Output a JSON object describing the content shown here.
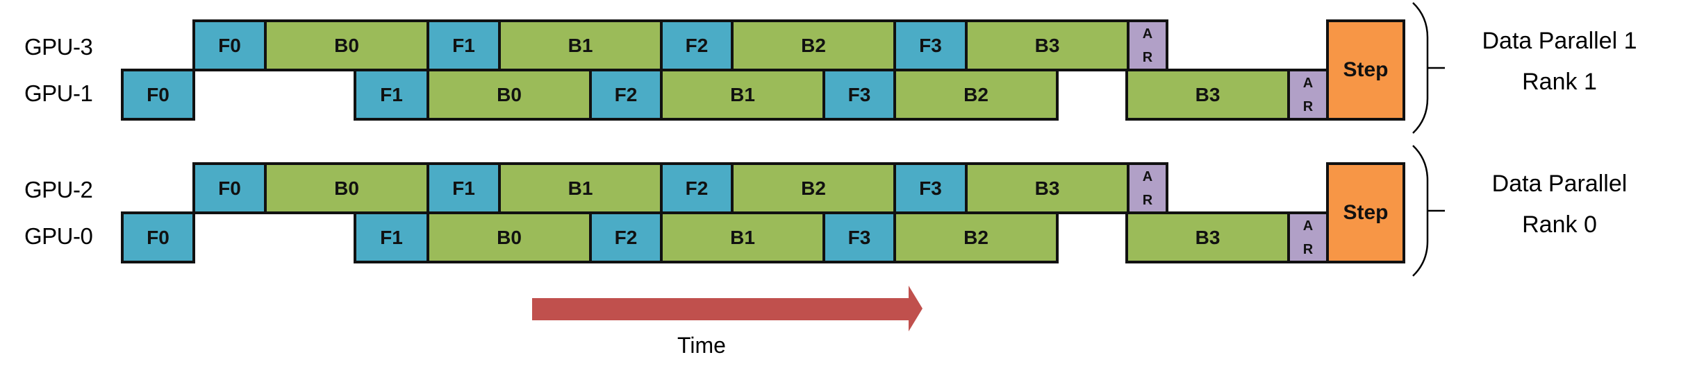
{
  "colors": {
    "forward": "#4BACC6",
    "backward": "#9BBB59",
    "allreduce": "#B1A0C7",
    "step": "#F79646",
    "arrow": "#C0504D"
  },
  "groups": [
    {
      "name": "Data Parallel 1",
      "label_line1": "Data Parallel 1",
      "label_line2": "Rank 1",
      "rows": [
        {
          "gpu": "GPU-3",
          "blocks": [
            {
              "label": "F0",
              "kind": "forward"
            },
            {
              "label": "B0",
              "kind": "backward"
            },
            {
              "label": "F1",
              "kind": "forward"
            },
            {
              "label": "B1",
              "kind": "backward"
            },
            {
              "label": "F2",
              "kind": "forward"
            },
            {
              "label": "B2",
              "kind": "backward"
            },
            {
              "label": "F3",
              "kind": "forward"
            },
            {
              "label": "B3",
              "kind": "backward"
            },
            {
              "label": "A R",
              "kind": "allreduce"
            }
          ]
        },
        {
          "gpu": "GPU-1",
          "blocks": [
            {
              "label": "F0",
              "kind": "forward"
            },
            {
              "label": "F1",
              "kind": "forward"
            },
            {
              "label": "B0",
              "kind": "backward"
            },
            {
              "label": "F2",
              "kind": "forward"
            },
            {
              "label": "B1",
              "kind": "backward"
            },
            {
              "label": "F3",
              "kind": "forward"
            },
            {
              "label": "B2",
              "kind": "backward"
            },
            {
              "label": "B3",
              "kind": "backward"
            },
            {
              "label": "A R",
              "kind": "allreduce"
            }
          ]
        }
      ],
      "step_label": "Step"
    },
    {
      "name": "Data Parallel Rank 0",
      "label_line1": "Data Parallel",
      "label_line2": "Rank 0",
      "rows": [
        {
          "gpu": "GPU-2",
          "blocks": [
            {
              "label": "F0",
              "kind": "forward"
            },
            {
              "label": "B0",
              "kind": "backward"
            },
            {
              "label": "F1",
              "kind": "forward"
            },
            {
              "label": "B1",
              "kind": "backward"
            },
            {
              "label": "F2",
              "kind": "forward"
            },
            {
              "label": "B2",
              "kind": "backward"
            },
            {
              "label": "F3",
              "kind": "forward"
            },
            {
              "label": "B3",
              "kind": "backward"
            },
            {
              "label": "A R",
              "kind": "allreduce"
            }
          ]
        },
        {
          "gpu": "GPU-0",
          "blocks": [
            {
              "label": "F0",
              "kind": "forward"
            },
            {
              "label": "F1",
              "kind": "forward"
            },
            {
              "label": "B0",
              "kind": "backward"
            },
            {
              "label": "F2",
              "kind": "forward"
            },
            {
              "label": "B1",
              "kind": "backward"
            },
            {
              "label": "F3",
              "kind": "forward"
            },
            {
              "label": "B2",
              "kind": "backward"
            },
            {
              "label": "B3",
              "kind": "backward"
            },
            {
              "label": "A R",
              "kind": "allreduce"
            }
          ]
        }
      ],
      "step_label": "Step"
    }
  ],
  "time_axis": {
    "label": "Time"
  }
}
